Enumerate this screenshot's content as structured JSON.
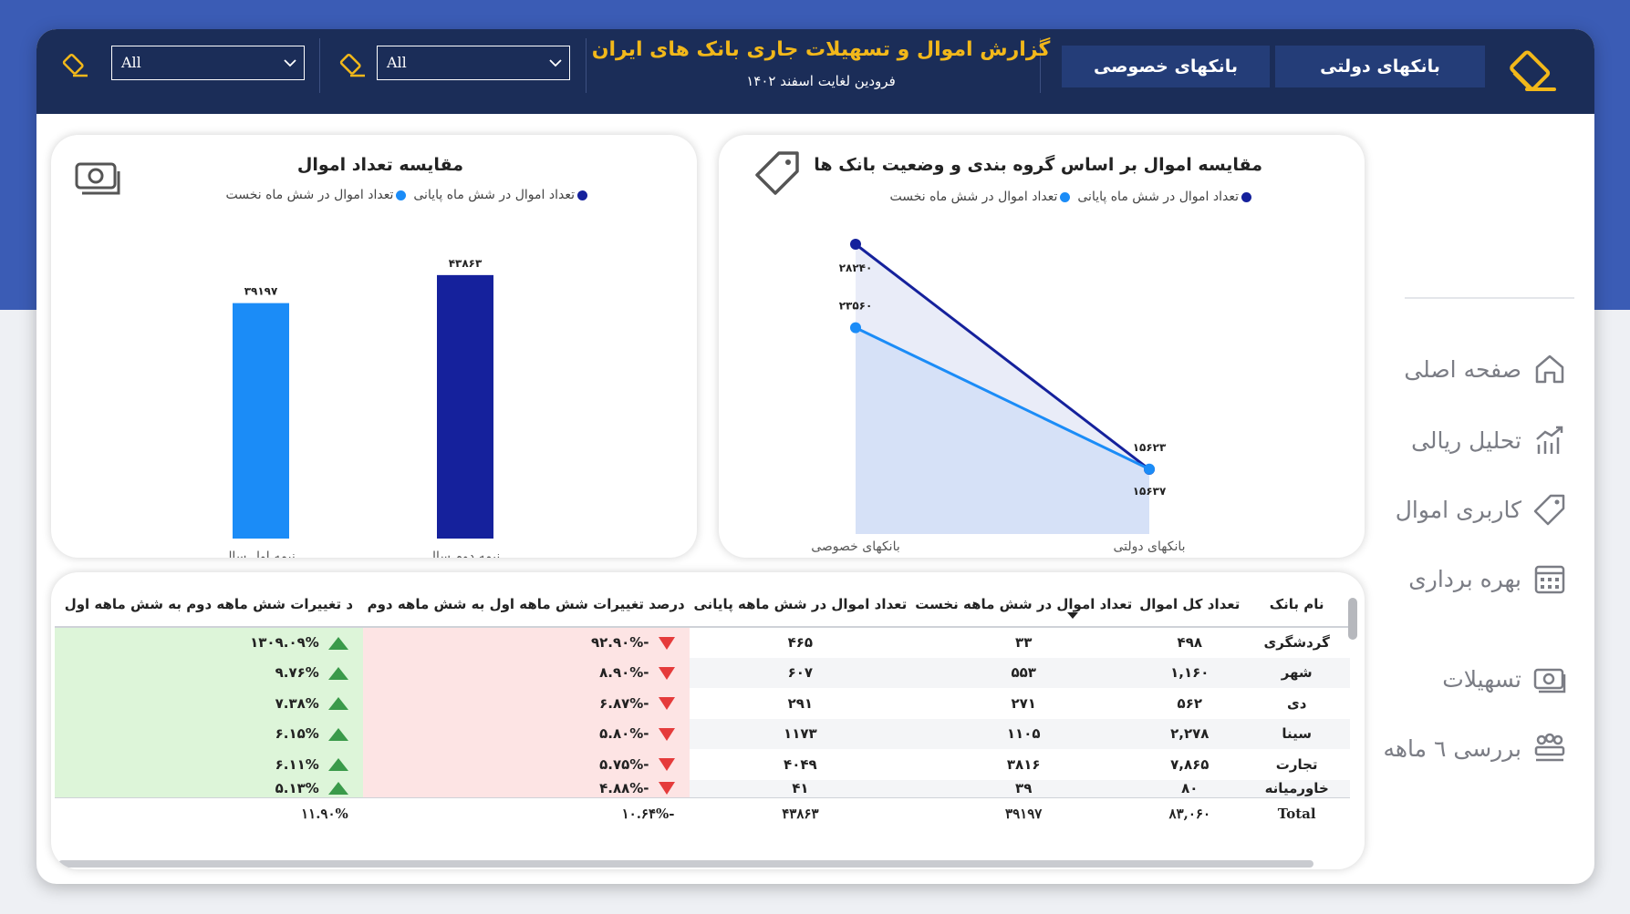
{
  "header": {
    "title": "گزارش اموال و تسهیلات جاری بانک های ایران",
    "subtitle": "فرودین لغایت اسفند ۱۴۰۲",
    "tabs": [
      {
        "label": "بانکهای دولتی"
      },
      {
        "label": "بانکهای خصوصی"
      }
    ],
    "filters": [
      {
        "value": "All"
      },
      {
        "value": "All"
      }
    ]
  },
  "sidebar": {
    "items": [
      {
        "label": "صفحه اصلی",
        "icon": "home-icon"
      },
      {
        "label": "تحلیل ریالی",
        "icon": "chart-icon"
      },
      {
        "label": "کاربری اموال",
        "icon": "tag-icon"
      },
      {
        "label": "بهره برداری",
        "icon": "calendar-icon"
      },
      {
        "label": "تسهیلات",
        "icon": "money-icon"
      },
      {
        "label": "بررسی ٦ ماهه",
        "icon": "group-icon"
      }
    ]
  },
  "colors": {
    "dark_series": "#15219c",
    "light_series": "#1b8cf7",
    "header_bg": "#1b2d58",
    "title_gold": "#f2b81a"
  },
  "bar_chart": {
    "title": "مقایسه تعداد اموال",
    "legend": [
      "تعداد اموال در شش ماه پایانی",
      "تعداد اموال در شش ماه نخست"
    ],
    "chart_data": {
      "type": "bar",
      "categories": [
        "نیمه دوم سال",
        "نیمه اول سال"
      ],
      "values": [
        43863,
        39197
      ],
      "value_labels": [
        "۴۳۸۶۳",
        "۳۹۱۹۷"
      ]
    }
  },
  "line_chart": {
    "title": "مقایسه اموال بر اساس گروه بندی و وضعیت بانک ها",
    "legend": [
      "تعداد اموال در شش ماه پایانی",
      "تعداد اموال در شش ماه نخست"
    ],
    "chart_data": {
      "type": "area",
      "categories": [
        "بانکهای خصوصی",
        "بانکهای دولتی"
      ],
      "series": [
        {
          "name": "تعداد اموال در شش ماه پایانی",
          "values": [
            28240,
            15623
          ],
          "labels": [
            "۲۸۲۴۰",
            "۱۵۶۲۳"
          ]
        },
        {
          "name": "تعداد اموال در شش ماه نخست",
          "values": [
            23560,
            15637
          ],
          "labels": [
            "۲۳۵۶۰",
            "۱۵۶۳۷"
          ]
        }
      ]
    }
  },
  "table": {
    "headers": [
      "نام بانک",
      "تعداد کل اموال",
      "تعداد اموال در شش ماهه نخست",
      "تعداد اموال در شش ماهه پایانی",
      "درصد تغییرات شش ماهه اول به شش ماهه دوم",
      "د تغییرات شش ماهه دوم به شش ماهه اول"
    ],
    "rows": [
      {
        "name": "گردشگری",
        "total": "۴۹۸",
        "first": "۳۳",
        "second": "۴۶۵",
        "pct1": "-۹۲.۹۰%",
        "pct2": "۱۳۰۹.۰۹%"
      },
      {
        "name": "شهر",
        "total": "۱,۱۶۰",
        "first": "۵۵۳",
        "second": "۶۰۷",
        "pct1": "-۸.۹۰%",
        "pct2": "۹.۷۶%"
      },
      {
        "name": "دی",
        "total": "۵۶۲",
        "first": "۲۷۱",
        "second": "۲۹۱",
        "pct1": "-۶.۸۷%",
        "pct2": "۷.۳۸%"
      },
      {
        "name": "سینا",
        "total": "۲,۲۷۸",
        "first": "۱۱۰۵",
        "second": "۱۱۷۳",
        "pct1": "-۵.۸۰%",
        "pct2": "۶.۱۵%"
      },
      {
        "name": "تجارت",
        "total": "۷,۸۶۵",
        "first": "۳۸۱۶",
        "second": "۴۰۴۹",
        "pct1": "-۵.۷۵%",
        "pct2": "۶.۱۱%"
      },
      {
        "name": "خاورمیانه",
        "total": "۸۰",
        "first": "۳۹",
        "second": "۴۱",
        "pct1": "-۴.۸۸%",
        "pct2": "۵.۱۳%"
      }
    ],
    "total": {
      "label": "Total",
      "total": "۸۳,۰۶۰",
      "first": "۳۹۱۹۷",
      "second": "۴۳۸۶۳",
      "pct1": "-۱۰.۶۴%",
      "pct2": "۱۱.۹۰%"
    }
  }
}
